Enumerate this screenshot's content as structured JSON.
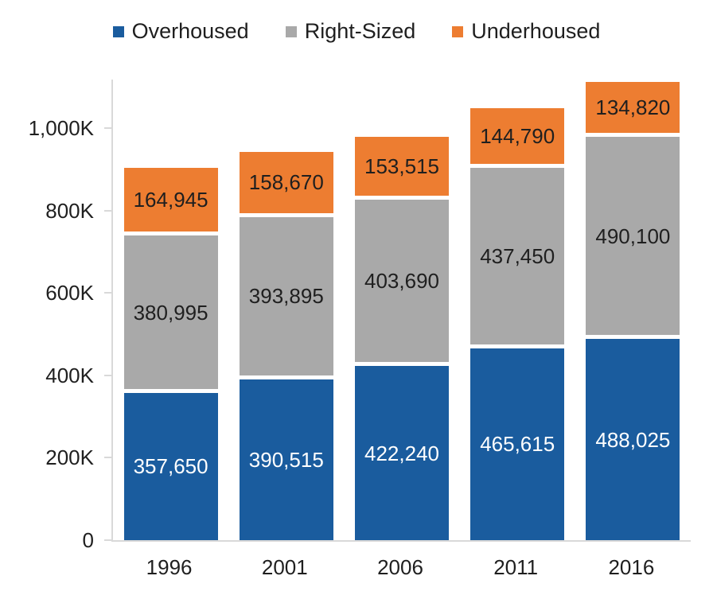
{
  "chart_data": {
    "type": "bar",
    "stacked": true,
    "title": "",
    "categories": [
      "1996",
      "2001",
      "2006",
      "2011",
      "2016"
    ],
    "series": [
      {
        "name": "Overhoused",
        "color": "#1A5C9E",
        "label_color": "#FFFFFF",
        "values": [
          357650,
          390515,
          422240,
          465615,
          488025
        ]
      },
      {
        "name": "Right-Sized",
        "color": "#A9A9A9",
        "label_color": "#1F1F1F",
        "values": [
          380995,
          393895,
          403690,
          437450,
          490100
        ]
      },
      {
        "name": "Underhoused",
        "color": "#ED7D31",
        "label_color": "#1F1F1F",
        "values": [
          164945,
          158670,
          153515,
          144790,
          134820
        ]
      }
    ],
    "xlabel": "",
    "ylabel": "",
    "ylim": [
      0,
      1118000
    ],
    "y_axis": {
      "max": 1118000,
      "ticks": [
        {
          "value": 0,
          "label": "0"
        },
        {
          "value": 200000,
          "label": "200K"
        },
        {
          "value": 400000,
          "label": "400K"
        },
        {
          "value": 600000,
          "label": "600K"
        },
        {
          "value": 800000,
          "label": "800K"
        },
        {
          "value": 1000000,
          "label": "1,000K"
        }
      ]
    },
    "legend_position": "top",
    "grid": false,
    "data_labels_shown": true,
    "data_label_format": "thousands-comma"
  },
  "colors": {
    "background": "#FFFFFF",
    "axis_line": "#D9D9D9",
    "text": "#1F1F1F",
    "segment_gap": "#FFFFFF"
  }
}
